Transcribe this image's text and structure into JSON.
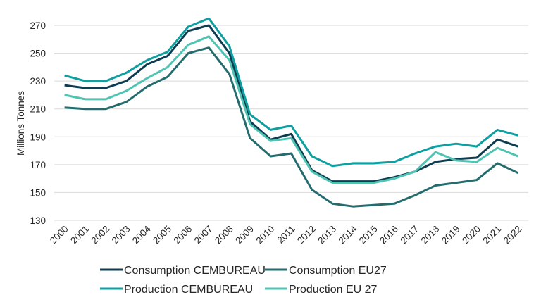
{
  "chart_data": {
    "type": "line",
    "title": "",
    "xlabel": "",
    "ylabel": "Millions Tonnes",
    "ylim": [
      130,
      280
    ],
    "yticks": [
      130,
      150,
      170,
      190,
      210,
      230,
      250,
      270
    ],
    "grid": true,
    "legend_position": "bottom",
    "categories": [
      "2000",
      "2001",
      "2002",
      "2003",
      "2004",
      "2005",
      "2006",
      "2007",
      "2008",
      "2009",
      "2010",
      "2011",
      "2012",
      "2013",
      "2014",
      "2015",
      "2016",
      "2017",
      "2018",
      "2019",
      "2020",
      "2021",
      "2022"
    ],
    "series": [
      {
        "name": "Consumption CEMBUREAU",
        "color": "#0e3d52",
        "values": [
          227,
          225,
          225,
          230,
          242,
          248,
          266,
          270,
          250,
          201,
          188,
          192,
          166,
          158,
          158,
          158,
          161,
          165,
          172,
          174,
          175,
          188,
          183
        ]
      },
      {
        "name": "Consumption EU27",
        "color": "#246c6e",
        "values": [
          211,
          210,
          210,
          215,
          226,
          233,
          250,
          254,
          235,
          189,
          176,
          178,
          152,
          142,
          140,
          141,
          142,
          148,
          155,
          157,
          159,
          171,
          164
        ]
      },
      {
        "name": "Production CEMBUREAU",
        "color": "#0e9fa0",
        "values": [
          234,
          230,
          230,
          236,
          245,
          251,
          269,
          275,
          255,
          206,
          195,
          198,
          176,
          169,
          171,
          171,
          172,
          178,
          183,
          185,
          183,
          195,
          191
        ]
      },
      {
        "name": "Production EU 27",
        "color": "#4fc4b2",
        "values": [
          220,
          217,
          217,
          223,
          232,
          240,
          256,
          262,
          245,
          199,
          187,
          189,
          165,
          157,
          157,
          157,
          160,
          165,
          179,
          173,
          172,
          182,
          176
        ]
      }
    ]
  }
}
